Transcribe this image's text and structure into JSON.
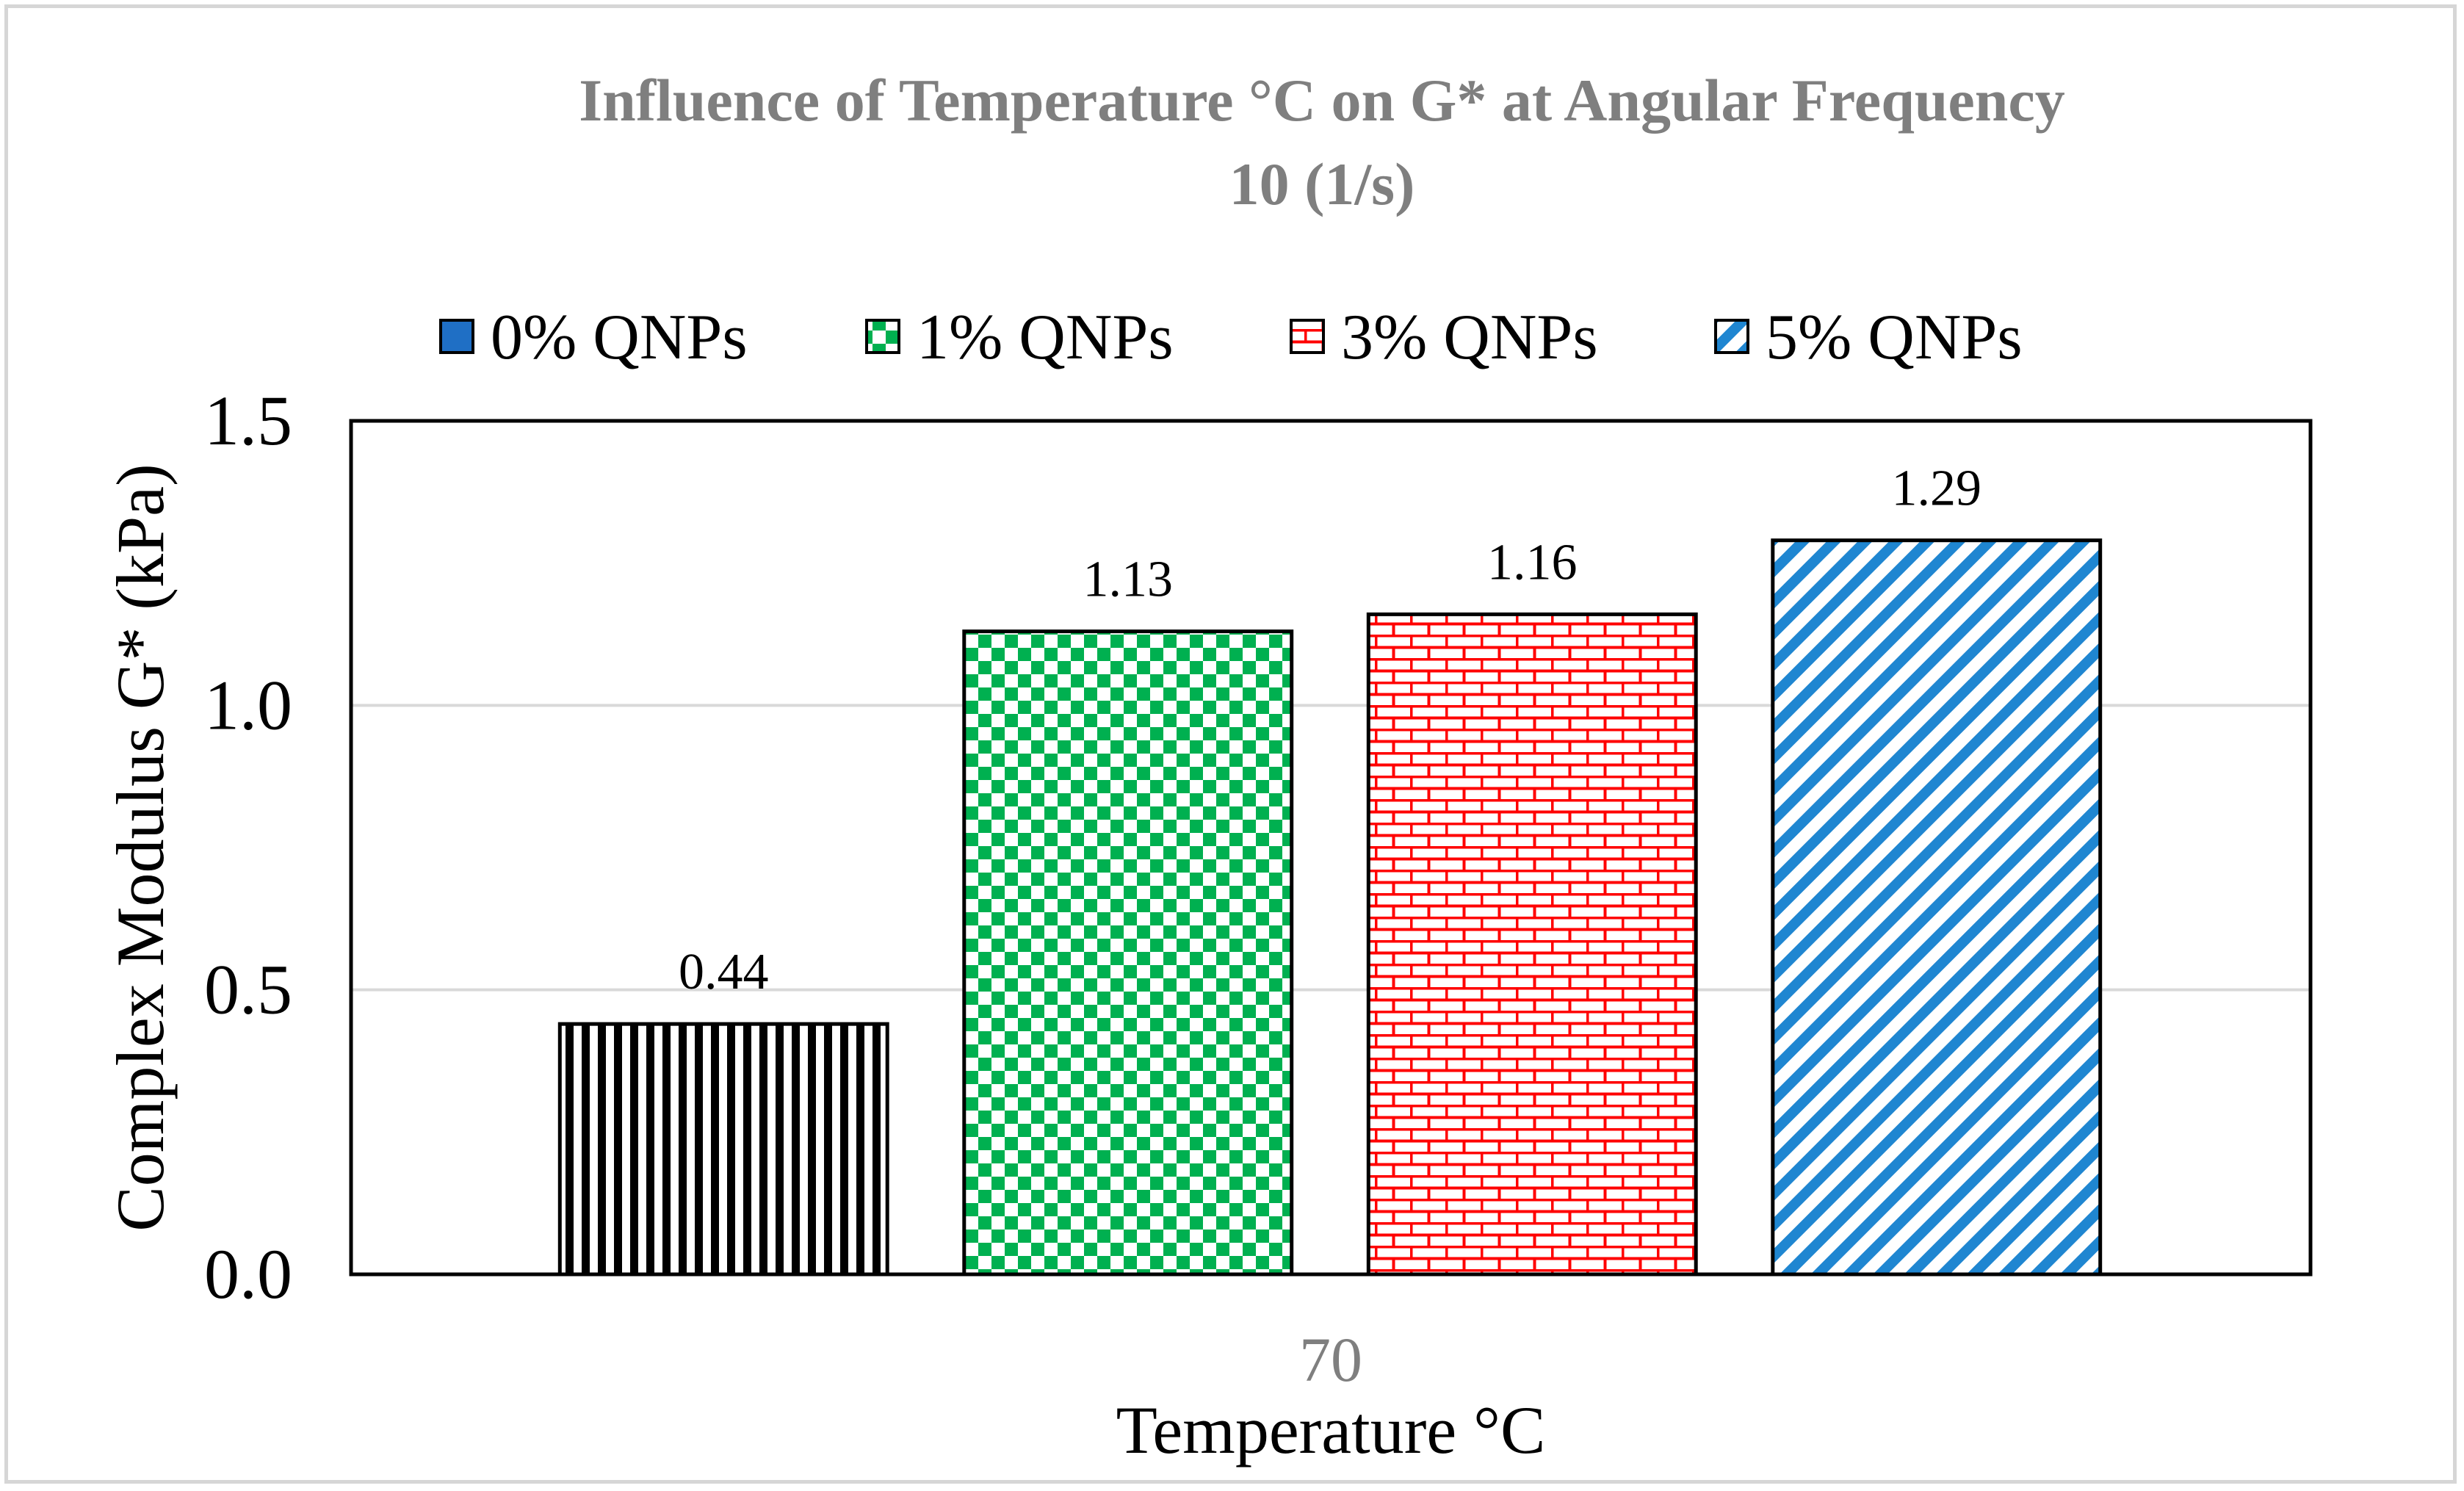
{
  "chart_data": {
    "type": "bar",
    "title": "Influence of Temperature °C on G* at Angular Frequency",
    "title_line2": "10 (1/s)",
    "xlabel": "Temperature °C",
    "ylabel": "Complex Modulus  G* (kPa)",
    "categories": [
      "70"
    ],
    "ylim": [
      0,
      1.5
    ],
    "yticks": [
      "0.0",
      "0.5",
      "1.0",
      "1.5"
    ],
    "ytick_values": [
      0,
      0.5,
      1.0,
      1.5
    ],
    "grid": true,
    "legend_position": "top",
    "series": [
      {
        "name": "0% QNPs",
        "values": [
          0.44
        ],
        "label": "0.44",
        "pattern": "vertical-stripes",
        "color": "#000000",
        "legend_color": "#1f6fc5"
      },
      {
        "name": "1% QNPs",
        "values": [
          1.13
        ],
        "label": "1.13",
        "pattern": "checkerboard",
        "color": "#00b050",
        "legend_color": "#00b050"
      },
      {
        "name": "3% QNPs",
        "values": [
          1.16
        ],
        "label": "1.16",
        "pattern": "brick",
        "color": "#ff0000",
        "legend_color": "#ff0000"
      },
      {
        "name": "5% QNPs",
        "values": [
          1.29
        ],
        "label": "1.29",
        "pattern": "diagonal-stripes",
        "color": "#1f86d1",
        "legend_color": "#1f86d1"
      }
    ]
  }
}
